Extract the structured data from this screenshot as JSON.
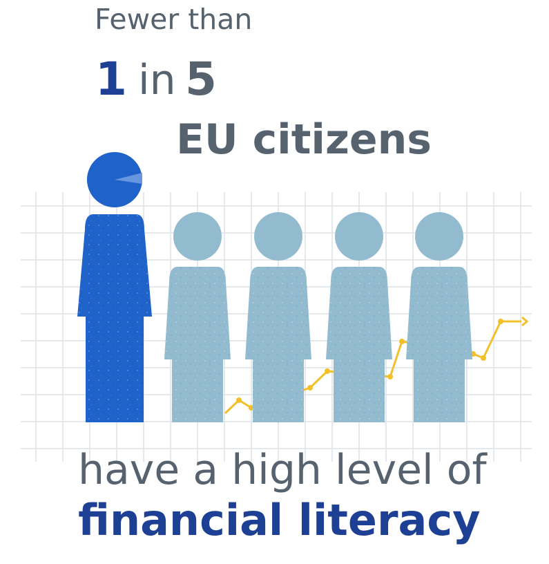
{
  "headline": {
    "pre": "Fewer than",
    "numerator": "1",
    "preposition": "in",
    "denominator": "5",
    "subject": "EU citizens"
  },
  "caption": {
    "line1": "have a high level of",
    "line2": "financial literacy"
  },
  "figures": {
    "total": 5,
    "highlighted": 1
  },
  "colors": {
    "text_gray": "#56636f",
    "text_navy": "#1d3f94",
    "figure_highlight": "#1f62c9",
    "figure_muted": "#93bbd0",
    "grid": "#dde2e6",
    "trend_line": "#f2c02b"
  }
}
